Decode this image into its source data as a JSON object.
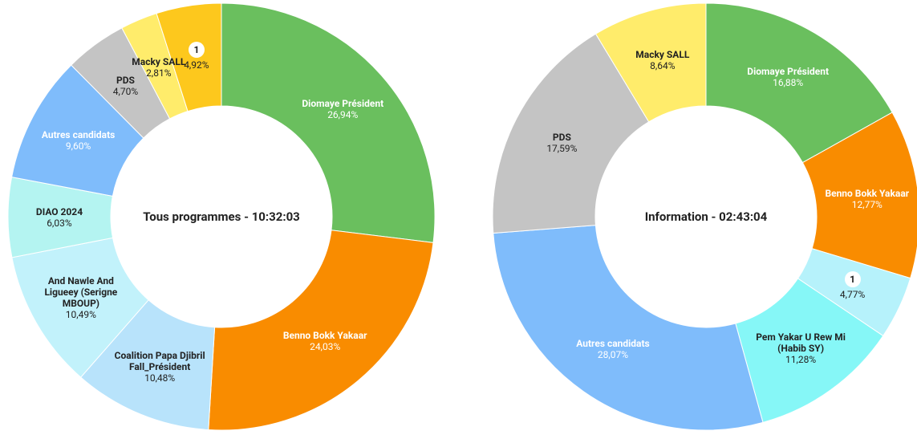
{
  "chart_data": [
    {
      "type": "donut",
      "title": "Tous programmes - 10:32:03",
      "categories": [
        "Diomaye Président",
        "Benno Bokk Yakaar",
        "Coalition Papa Djibril Fall_Président",
        "And Nawle And Ligueey (Serigne MBOUP)",
        "DIAO 2024",
        "Autres candidats",
        "PDS",
        "Macky SALL",
        "1"
      ],
      "values": [
        26.94,
        24.03,
        10.48,
        10.49,
        6.03,
        9.6,
        4.7,
        2.81,
        4.92
      ],
      "value_labels": [
        "26,94%",
        "24,03%",
        "10,48%",
        "10,49%",
        "6,03%",
        "9,60%",
        "4,70%",
        "2,81%",
        "4,92%"
      ],
      "colors": [
        "#6abf5e",
        "#f98c00",
        "#b8e3fb",
        "#c2f2fb",
        "#b4f4f1",
        "#7fbcfb",
        "#c4c4c4",
        "#ffec6b",
        "#fdc81d"
      ]
    },
    {
      "type": "donut",
      "title": "Information - 02:43:04",
      "categories": [
        "Diomaye Président",
        "Benno Bokk Yakaar",
        "1",
        "Pem Yakar U Rew Mi (Habib SY)",
        "Autres candidats",
        "PDS",
        "Macky SALL"
      ],
      "values": [
        16.88,
        12.77,
        4.77,
        11.28,
        28.07,
        17.59,
        8.64
      ],
      "value_labels": [
        "16,88%",
        "12,77%",
        "4,77%",
        "11,28%",
        "28,07%",
        "17,59%",
        "8,64%"
      ],
      "colors": [
        "#6abf5e",
        "#f98c00",
        "#b6f2fb",
        "#86f7f7",
        "#7fbcfb",
        "#c4c4c4",
        "#ffec6b"
      ]
    }
  ]
}
